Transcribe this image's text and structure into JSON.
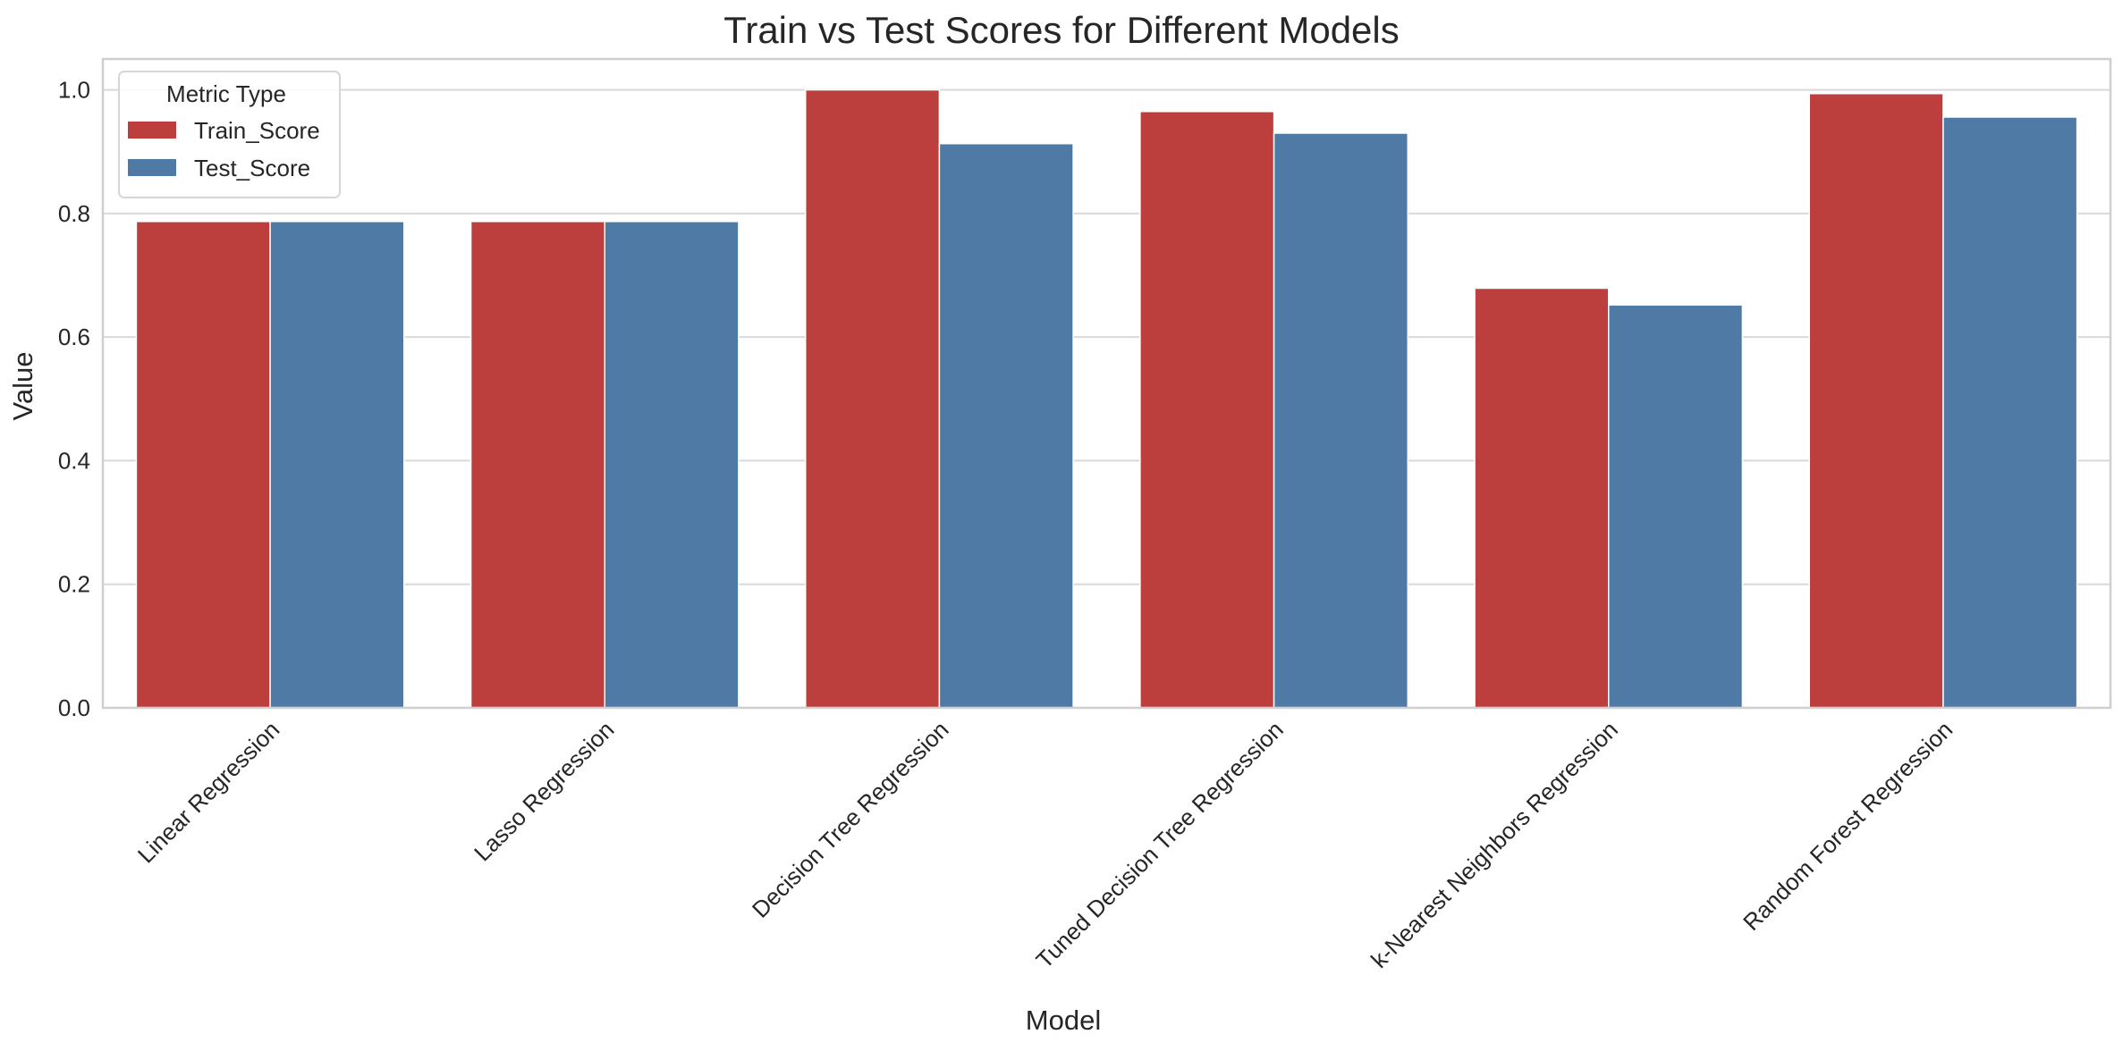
{
  "chart_data": {
    "type": "bar",
    "title": "Train vs Test Scores for Different Models",
    "xlabel": "Model",
    "ylabel": "Value",
    "ylim": [
      0,
      1.05
    ],
    "yticks": [
      0.0,
      0.2,
      0.4,
      0.6,
      0.8,
      1.0
    ],
    "ytick_labels": [
      "0.0",
      "0.2",
      "0.4",
      "0.6",
      "0.8",
      "1.0"
    ],
    "grid": true,
    "categories": [
      "Linear Regression",
      "Lasso Regression",
      "Decision Tree Regression",
      "Tuned Decision Tree Regression",
      "k-Nearest Neighbors Regression",
      "Random Forest Regression"
    ],
    "series": [
      {
        "name": "Train_Score",
        "color": "#bc3f3d",
        "values": [
          0.787,
          0.787,
          1.0,
          0.965,
          0.679,
          0.994
        ]
      },
      {
        "name": "Test_Score",
        "color": "#4f7aa5",
        "values": [
          0.787,
          0.787,
          0.913,
          0.93,
          0.652,
          0.956
        ]
      }
    ],
    "legend": {
      "title": "Metric Type",
      "position": "top-left"
    }
  }
}
